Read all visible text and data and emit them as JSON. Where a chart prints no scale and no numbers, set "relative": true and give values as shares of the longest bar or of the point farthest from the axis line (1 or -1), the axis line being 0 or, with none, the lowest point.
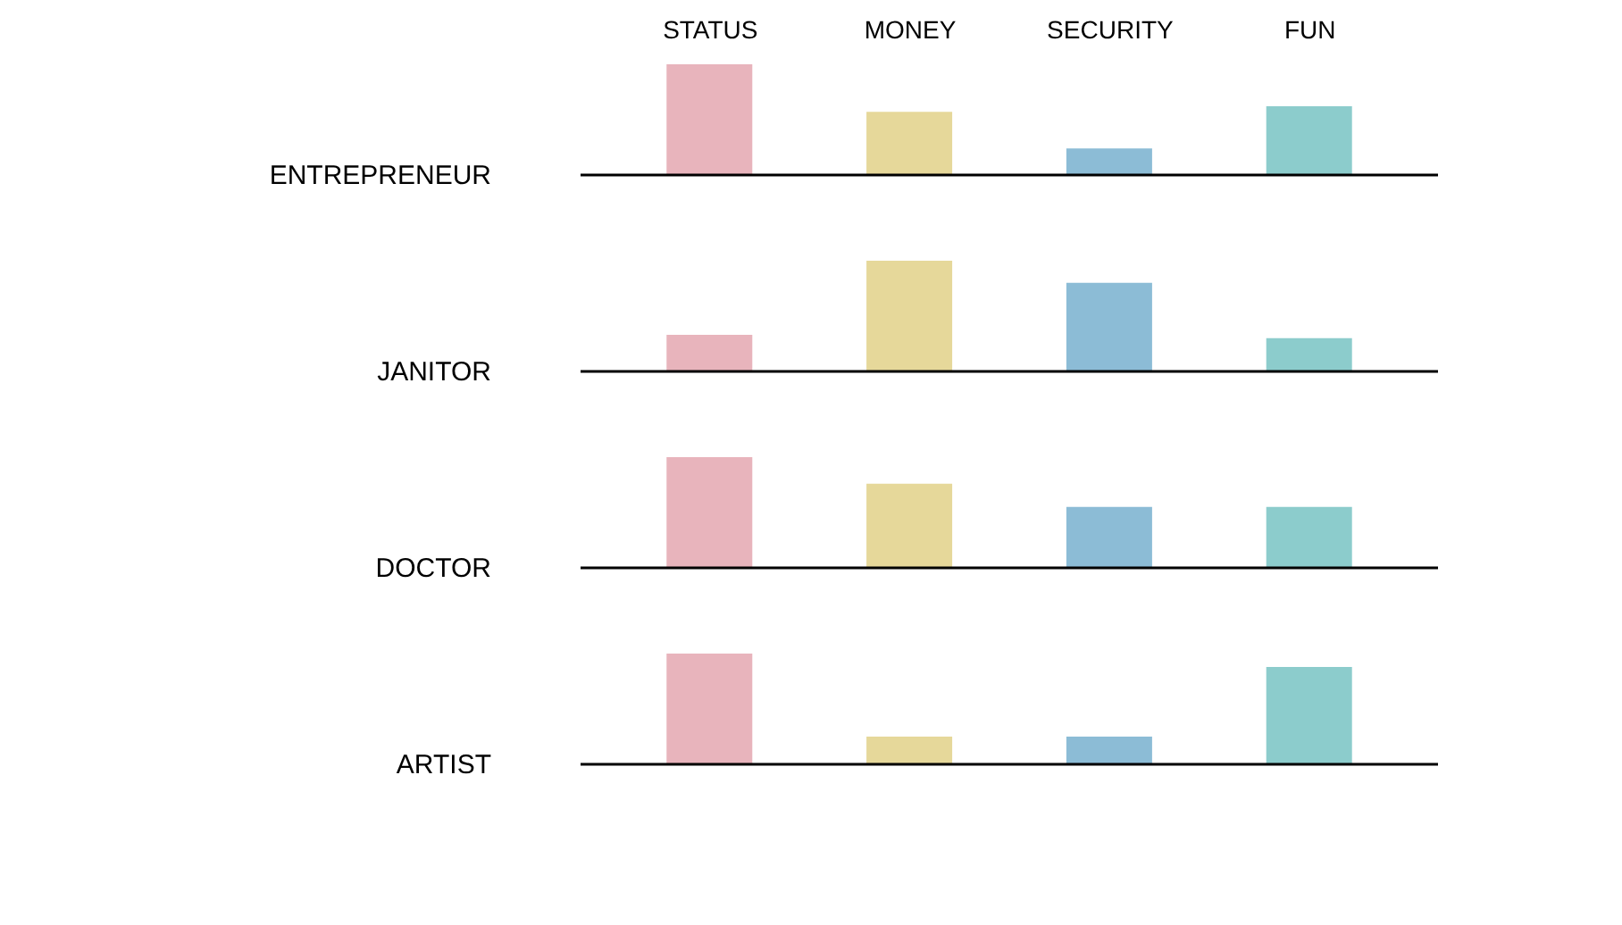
{
  "chart_data": [
    {
      "type": "bar",
      "title": "ENTREPRENEUR",
      "categories": [
        "STATUS",
        "MONEY",
        "SECURITY",
        "FUN"
      ],
      "values": [
        1,
        0.57,
        0.24,
        0.62
      ],
      "colors": [
        "#e8b4bc",
        "#e6d89a",
        "#8cbcd6",
        "#8ccccc"
      ],
      "relative": true,
      "grid": false
    },
    {
      "type": "bar",
      "title": "JANITOR",
      "categories": [
        null,
        null,
        null,
        null
      ],
      "values": [
        0.33,
        1,
        0.8,
        0.3
      ],
      "colors": [
        "#e8b4bc",
        "#e6d89a",
        "#8cbcd6",
        "#8ccccc"
      ],
      "relative": true,
      "grid": false
    },
    {
      "type": "bar",
      "title": "DOCTOR",
      "categories": [
        null,
        null,
        null,
        null
      ],
      "values": [
        1,
        0.76,
        0.55,
        0.55
      ],
      "colors": [
        "#e8b4bc",
        "#e6d89a",
        "#8cbcd6",
        "#8ccccc"
      ],
      "relative": true,
      "grid": false
    },
    {
      "type": "bar",
      "title": "ARTIST",
      "categories": [
        null,
        null,
        null,
        null
      ],
      "values": [
        1,
        0.25,
        0.25,
        0.88
      ],
      "colors": [
        "#e8b4bc",
        "#e6d89a",
        "#8cbcd6",
        "#8ccccc"
      ],
      "relative": true,
      "grid": false
    }
  ]
}
